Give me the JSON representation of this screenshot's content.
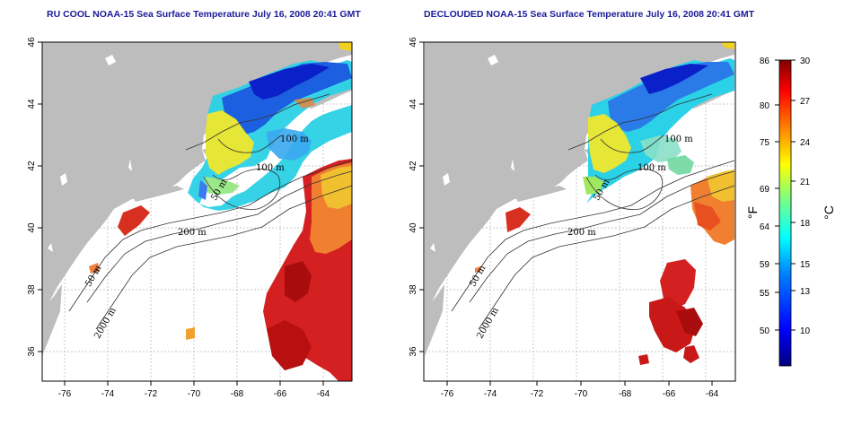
{
  "panels": [
    {
      "title": "RU COOL NOAA-15 Sea Surface Temperature July 16, 2008 20:41 GMT",
      "contour_labels": [
        "100 m",
        "100 m",
        "50 m",
        "200 m",
        "50 m",
        "2000 m"
      ]
    },
    {
      "title": "DECLOUDED NOAA-15 Sea Surface Temperature July 16, 2008 20:41 GMT",
      "contour_labels": [
        "100 m",
        "100 m",
        "50 m",
        "200 m",
        "50 m",
        "2000 m"
      ]
    }
  ],
  "axes": {
    "x_ticks": [
      "-76",
      "-74",
      "-72",
      "-70",
      "-68",
      "-66",
      "-64"
    ],
    "y_ticks": [
      "46",
      "44",
      "42",
      "40",
      "38",
      "36"
    ]
  },
  "colorbar": {
    "fahrenheit_ticks": [
      "86",
      "80",
      "75",
      "69",
      "64",
      "59",
      "55",
      "50"
    ],
    "celsius_ticks": [
      "30",
      "27",
      "24",
      "21",
      "18",
      "15",
      "13",
      "10"
    ],
    "fahrenheit_label": "°F",
    "celsius_label": "°C",
    "colors": [
      "#00007f",
      "#0000ff",
      "#0080ff",
      "#00ffff",
      "#80ff80",
      "#ffff00",
      "#ff8000",
      "#ff0000",
      "#7f0000"
    ]
  }
}
